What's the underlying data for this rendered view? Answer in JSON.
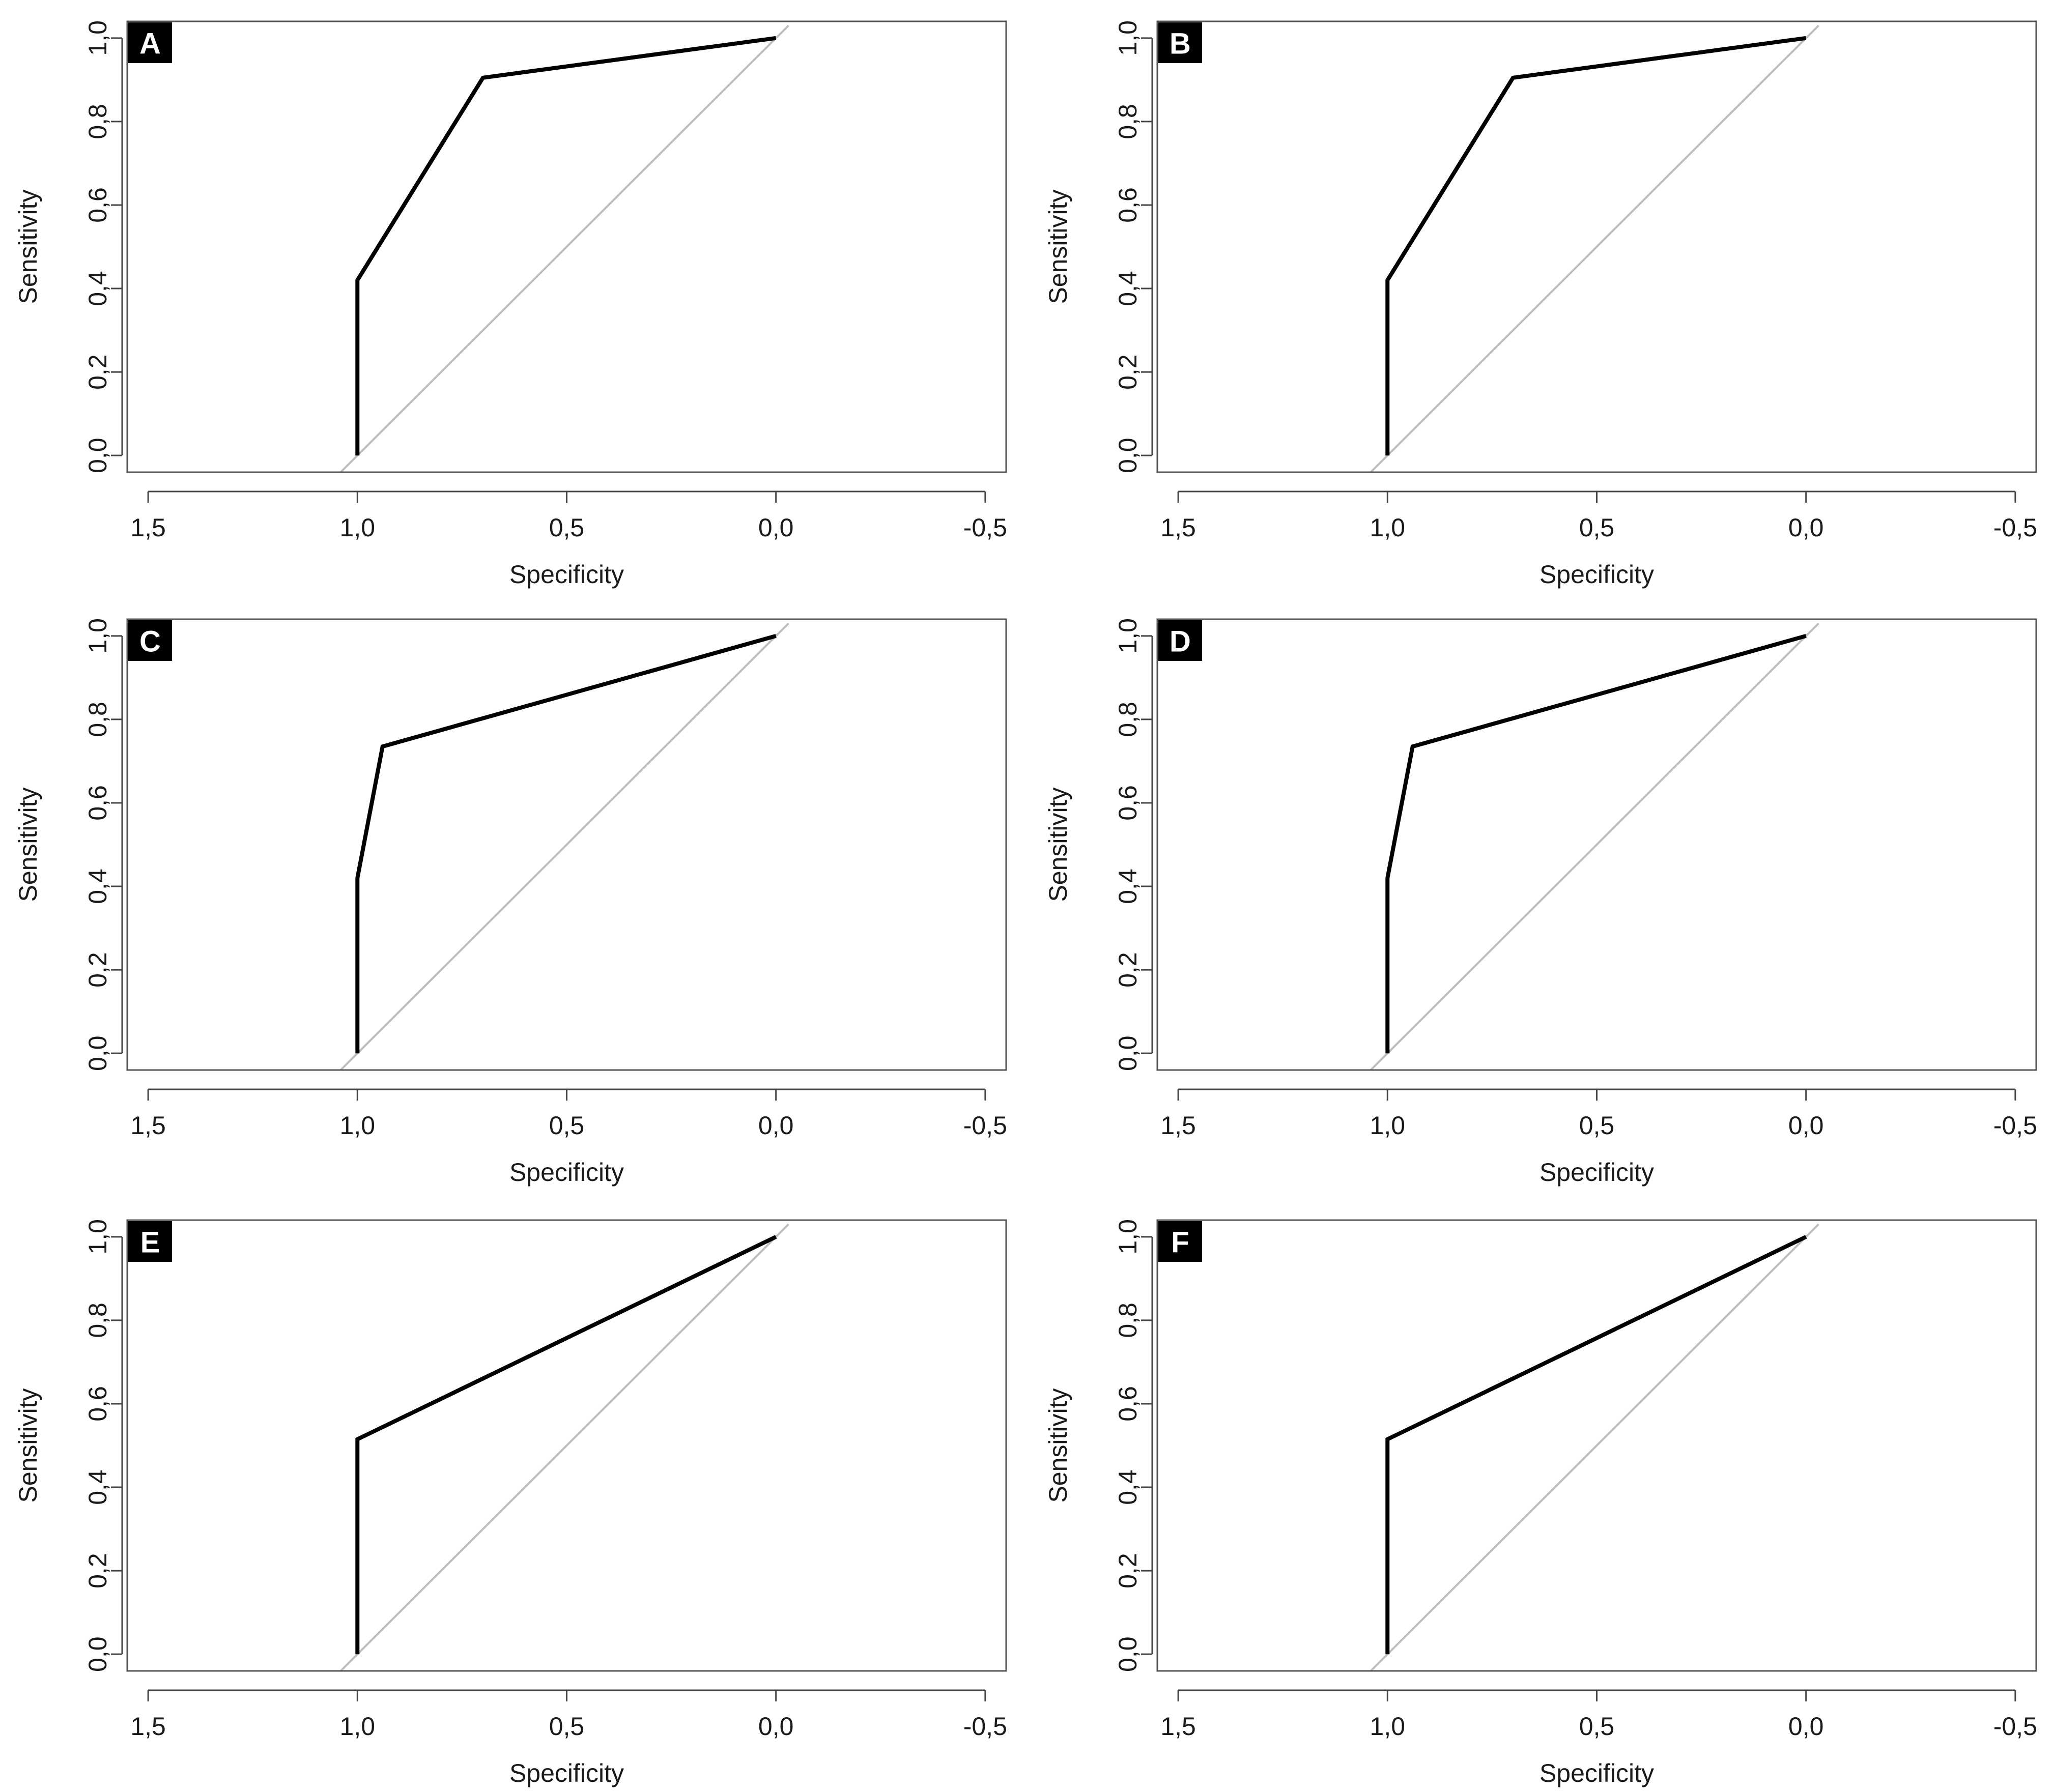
{
  "chart_data": [
    {
      "type": "line",
      "panel_label": "A",
      "xlabel": "Specificity",
      "ylabel": "Sensitivity",
      "xlim": [
        1.55,
        -0.55
      ],
      "ylim": [
        -0.04,
        1.04
      ],
      "xticks": [
        1.5,
        1.0,
        0.5,
        0.0,
        -0.5
      ],
      "xtick_labels": [
        "1,5",
        "1,0",
        "0,5",
        "0,0",
        "-0,5"
      ],
      "yticks": [
        0.0,
        0.2,
        0.4,
        0.6,
        0.8,
        1.0
      ],
      "ytick_labels": [
        "0,0",
        "0,2",
        "0,4",
        "0,6",
        "0,8",
        "1,0"
      ],
      "series": [
        {
          "name": "ROC curve",
          "color": "#000000",
          "x": [
            1.0,
            1.0,
            0.7,
            0.0
          ],
          "y": [
            0.0,
            0.42,
            0.905,
            1.0
          ]
        },
        {
          "name": "reference line",
          "color": "#bdbdbd",
          "x": [
            1.04,
            -0.03
          ],
          "y": [
            -0.04,
            1.03
          ]
        }
      ]
    },
    {
      "type": "line",
      "panel_label": "B",
      "xlabel": "Specificity",
      "ylabel": "Sensitivity",
      "xlim": [
        1.55,
        -0.55
      ],
      "ylim": [
        -0.04,
        1.04
      ],
      "xticks": [
        1.5,
        1.0,
        0.5,
        0.0,
        -0.5
      ],
      "xtick_labels": [
        "1,5",
        "1,0",
        "0,5",
        "0,0",
        "-0,5"
      ],
      "yticks": [
        0.0,
        0.2,
        0.4,
        0.6,
        0.8,
        1.0
      ],
      "ytick_labels": [
        "0,0",
        "0,2",
        "0,4",
        "0,6",
        "0,8",
        "1,0"
      ],
      "series": [
        {
          "name": "ROC curve",
          "color": "#000000",
          "x": [
            1.0,
            1.0,
            0.7,
            0.0
          ],
          "y": [
            0.0,
            0.42,
            0.905,
            1.0
          ]
        },
        {
          "name": "reference line",
          "color": "#bdbdbd",
          "x": [
            1.04,
            -0.03
          ],
          "y": [
            -0.04,
            1.03
          ]
        }
      ]
    },
    {
      "type": "line",
      "panel_label": "C",
      "xlabel": "Specificity",
      "ylabel": "Sensitivity",
      "xlim": [
        1.55,
        -0.55
      ],
      "ylim": [
        -0.04,
        1.04
      ],
      "xticks": [
        1.5,
        1.0,
        0.5,
        0.0,
        -0.5
      ],
      "xtick_labels": [
        "1,5",
        "1,0",
        "0,5",
        "0,0",
        "-0,5"
      ],
      "yticks": [
        0.0,
        0.2,
        0.4,
        0.6,
        0.8,
        1.0
      ],
      "ytick_labels": [
        "0,0",
        "0,2",
        "0,4",
        "0,6",
        "0,8",
        "1,0"
      ],
      "series": [
        {
          "name": "ROC curve",
          "color": "#000000",
          "x": [
            1.0,
            1.0,
            0.94,
            0.0
          ],
          "y": [
            0.0,
            0.42,
            0.735,
            1.0
          ]
        },
        {
          "name": "reference line",
          "color": "#bdbdbd",
          "x": [
            1.04,
            -0.03
          ],
          "y": [
            -0.04,
            1.03
          ]
        }
      ]
    },
    {
      "type": "line",
      "panel_label": "D",
      "xlabel": "Specificity",
      "ylabel": "Sensitivity",
      "xlim": [
        1.55,
        -0.55
      ],
      "ylim": [
        -0.04,
        1.04
      ],
      "xticks": [
        1.5,
        1.0,
        0.5,
        0.0,
        -0.5
      ],
      "xtick_labels": [
        "1,5",
        "1,0",
        "0,5",
        "0,0",
        "-0,5"
      ],
      "yticks": [
        0.0,
        0.2,
        0.4,
        0.6,
        0.8,
        1.0
      ],
      "ytick_labels": [
        "0,0",
        "0,2",
        "0,4",
        "0,6",
        "0,8",
        "1,0"
      ],
      "series": [
        {
          "name": "ROC curve",
          "color": "#000000",
          "x": [
            1.0,
            1.0,
            0.94,
            0.0
          ],
          "y": [
            0.0,
            0.42,
            0.735,
            1.0
          ]
        },
        {
          "name": "reference line",
          "color": "#bdbdbd",
          "x": [
            1.04,
            -0.03
          ],
          "y": [
            -0.04,
            1.03
          ]
        }
      ]
    },
    {
      "type": "line",
      "panel_label": "E",
      "xlabel": "Specificity",
      "ylabel": "Sensitivity",
      "xlim": [
        1.55,
        -0.55
      ],
      "ylim": [
        -0.04,
        1.04
      ],
      "xticks": [
        1.5,
        1.0,
        0.5,
        0.0,
        -0.5
      ],
      "xtick_labels": [
        "1,5",
        "1,0",
        "0,5",
        "0,0",
        "-0,5"
      ],
      "yticks": [
        0.0,
        0.2,
        0.4,
        0.6,
        0.8,
        1.0
      ],
      "ytick_labels": [
        "0,0",
        "0,2",
        "0,4",
        "0,6",
        "0,8",
        "1,0"
      ],
      "series": [
        {
          "name": "ROC curve",
          "color": "#000000",
          "x": [
            1.0,
            1.0,
            0.0
          ],
          "y": [
            0.0,
            0.515,
            1.0
          ]
        },
        {
          "name": "reference line",
          "color": "#bdbdbd",
          "x": [
            1.04,
            -0.03
          ],
          "y": [
            -0.04,
            1.03
          ]
        }
      ]
    },
    {
      "type": "line",
      "panel_label": "F",
      "xlabel": "Specificity",
      "ylabel": "Sensitivity",
      "xlim": [
        1.55,
        -0.55
      ],
      "ylim": [
        -0.04,
        1.04
      ],
      "xticks": [
        1.5,
        1.0,
        0.5,
        0.0,
        -0.5
      ],
      "xtick_labels": [
        "1,5",
        "1,0",
        "0,5",
        "0,0",
        "-0,5"
      ],
      "yticks": [
        0.0,
        0.2,
        0.4,
        0.6,
        0.8,
        1.0
      ],
      "ytick_labels": [
        "0,0",
        "0,2",
        "0,4",
        "0,6",
        "0,8",
        "1,0"
      ],
      "series": [
        {
          "name": "ROC curve",
          "color": "#000000",
          "x": [
            1.0,
            1.0,
            0.0
          ],
          "y": [
            0.0,
            0.515,
            1.0
          ]
        },
        {
          "name": "reference line",
          "color": "#bdbdbd",
          "x": [
            1.04,
            -0.03
          ],
          "y": [
            -0.04,
            1.03
          ]
        }
      ]
    }
  ]
}
